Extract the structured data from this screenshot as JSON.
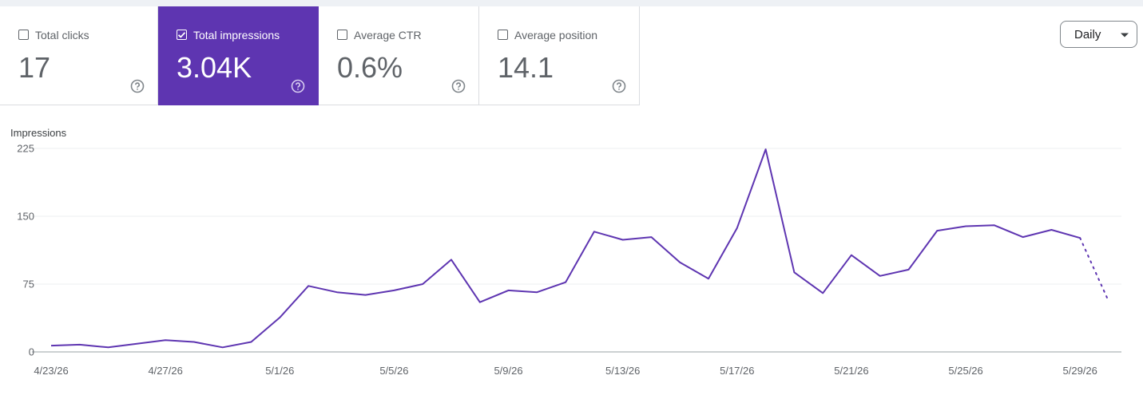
{
  "metrics": [
    {
      "label": "Total clicks",
      "value": "17",
      "selected": false
    },
    {
      "label": "Total impressions",
      "value": "3.04K",
      "selected": true
    },
    {
      "label": "Average CTR",
      "value": "0.6%",
      "selected": false
    },
    {
      "label": "Average position",
      "value": "14.1",
      "selected": false
    }
  ],
  "icons": {
    "help": "help-circle-icon",
    "caret": "caret-down-icon",
    "check": "check-icon"
  },
  "period_selector": {
    "label": "Daily"
  },
  "colors": {
    "accent": "#5e35b1",
    "line": "#5e35b1",
    "grid": "#eceff1"
  },
  "chart_data": {
    "type": "line",
    "title": "Impressions",
    "y_ticks": [
      "0",
      "75",
      "150",
      "225"
    ],
    "ylim": [
      0,
      225
    ],
    "x_tick_labels": [
      "4/23/26",
      "4/27/26",
      "5/1/26",
      "5/5/26",
      "5/9/26",
      "5/13/26",
      "5/17/26",
      "5/21/26",
      "5/25/26",
      "5/29/26"
    ],
    "x": [
      "4/23/26",
      "4/24/26",
      "4/25/26",
      "4/26/26",
      "4/27/26",
      "4/28/26",
      "4/29/26",
      "4/30/26",
      "5/1/26",
      "5/2/26",
      "5/3/26",
      "5/4/26",
      "5/5/26",
      "5/6/26",
      "5/7/26",
      "5/8/26",
      "5/9/26",
      "5/10/26",
      "5/11/26",
      "5/12/26",
      "5/13/26",
      "5/14/26",
      "5/15/26",
      "5/16/26",
      "5/17/26",
      "5/18/26",
      "5/19/26",
      "5/20/26",
      "5/21/26",
      "5/22/26",
      "5/23/26",
      "5/24/26",
      "5/25/26",
      "5/26/26",
      "5/27/26",
      "5/28/26",
      "5/29/26",
      "5/30/26"
    ],
    "values": [
      7,
      8,
      5,
      9,
      13,
      11,
      5,
      11,
      38,
      73,
      66,
      63,
      68,
      75,
      102,
      55,
      68,
      66,
      77,
      133,
      124,
      127,
      99,
      81,
      137,
      224,
      88,
      65,
      107,
      84,
      91,
      134,
      139,
      140,
      127,
      135,
      126,
      56
    ],
    "partial_last_point": true,
    "grid": true
  }
}
